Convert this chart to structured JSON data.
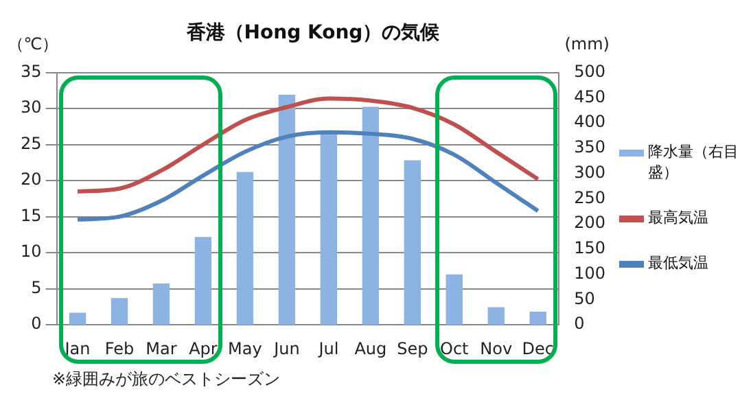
{
  "chart_data": {
    "type": "bar",
    "title": "香港（Hong Kong）の気候",
    "ylabel": "（℃）",
    "y2label": "(mm)",
    "categories": [
      "Jan",
      "Feb",
      "Mar",
      "Apr",
      "May",
      "Jun",
      "Jul",
      "Aug",
      "Sep",
      "Oct",
      "Nov",
      "Dec"
    ],
    "series": [
      {
        "name": "降水量（右目盛）",
        "axis": "y2",
        "color": "#8db3e2",
        "values": [
          24,
          53,
          82,
          174,
          303,
          456,
          379,
          432,
          326,
          100,
          35,
          26
        ]
      },
      {
        "name": "最高気温",
        "type": "line",
        "color": "#c0504d",
        "values": [
          18.5,
          18.9,
          21.4,
          25.0,
          28.4,
          30.2,
          31.4,
          31.1,
          30.1,
          27.8,
          24.0,
          20.2
        ]
      },
      {
        "name": "最低気温",
        "type": "line",
        "color": "#4f81bd",
        "values": [
          14.6,
          15.0,
          17.2,
          20.7,
          24.0,
          26.1,
          26.7,
          26.5,
          25.8,
          23.6,
          19.7,
          15.8
        ]
      }
    ],
    "ylim": [
      0,
      35
    ],
    "yticks": [
      0,
      5,
      10,
      15,
      20,
      25,
      30,
      35
    ],
    "y2lim": [
      0,
      500
    ],
    "y2ticks": [
      0,
      50,
      100,
      150,
      200,
      250,
      300,
      350,
      400,
      450,
      500
    ],
    "grid": "y",
    "legend": "right",
    "marker": "none",
    "annotations": [
      "※緑囲みが旅のベストシーズン"
    ]
  }
}
